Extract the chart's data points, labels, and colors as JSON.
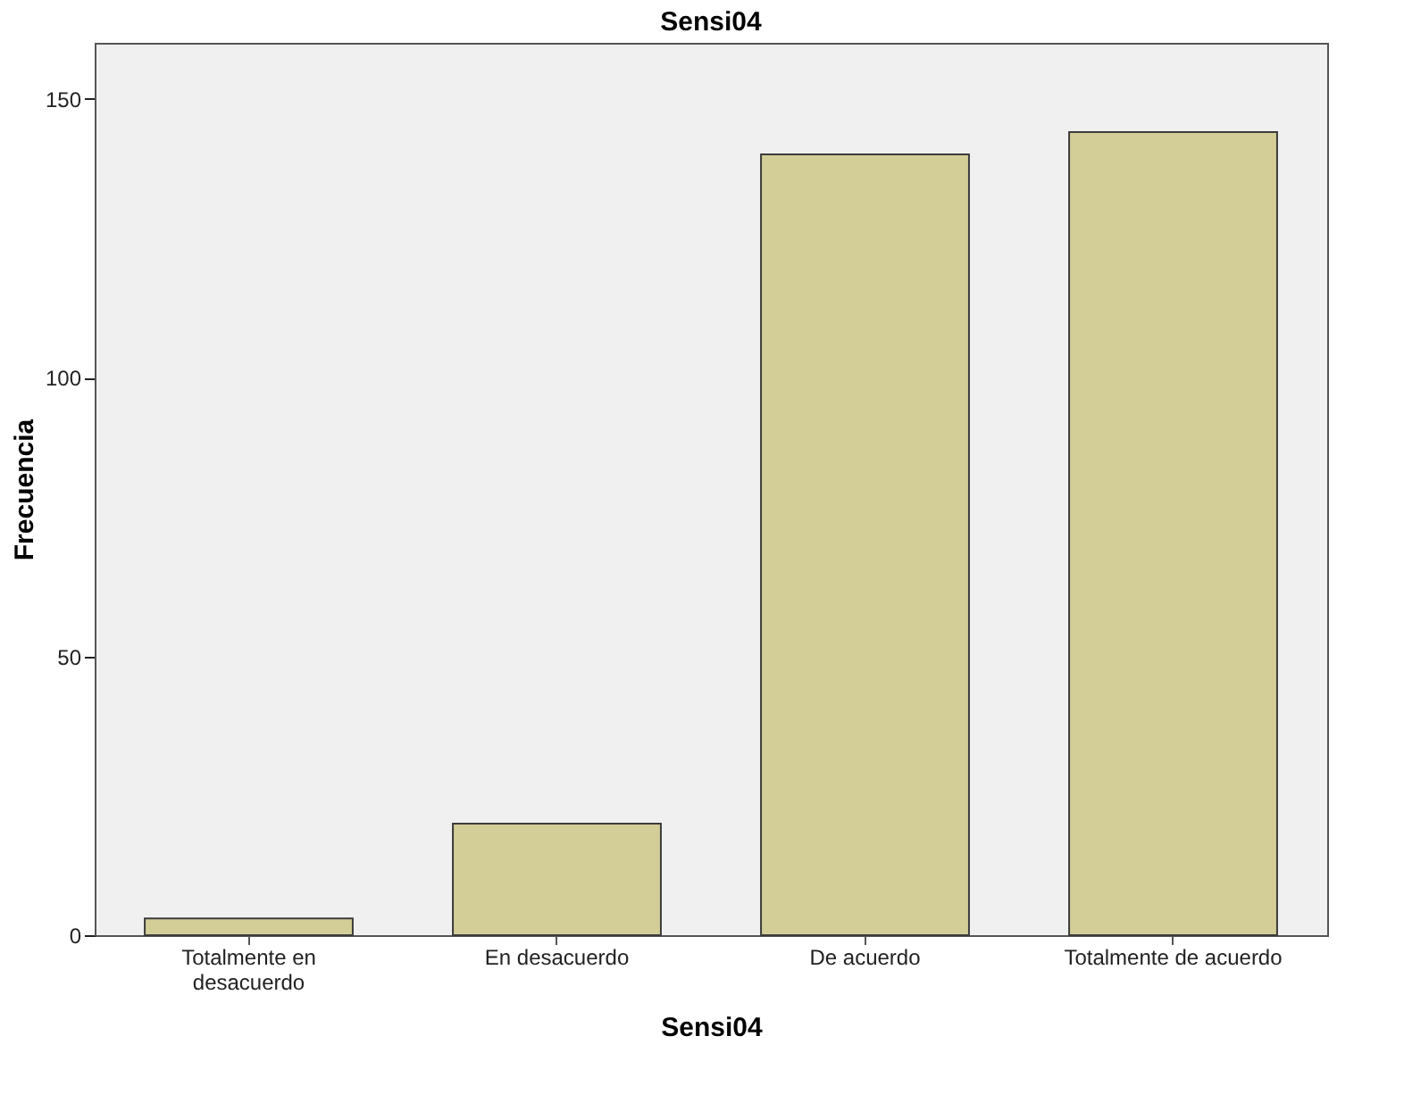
{
  "chart_data": {
    "type": "bar",
    "title": "Sensi04",
    "xlabel": "Sensi04",
    "ylabel": "Frecuencia",
    "categories": [
      "Totalmente en desacuerdo",
      "En desacuerdo",
      "De acuerdo",
      "Totalmente de acuerdo"
    ],
    "values": [
      3,
      20,
      140,
      144
    ],
    "color": "#d3ce97",
    "ylim": [
      0,
      160
    ],
    "yticks": [
      0,
      50,
      100,
      150
    ],
    "grid": false
  }
}
